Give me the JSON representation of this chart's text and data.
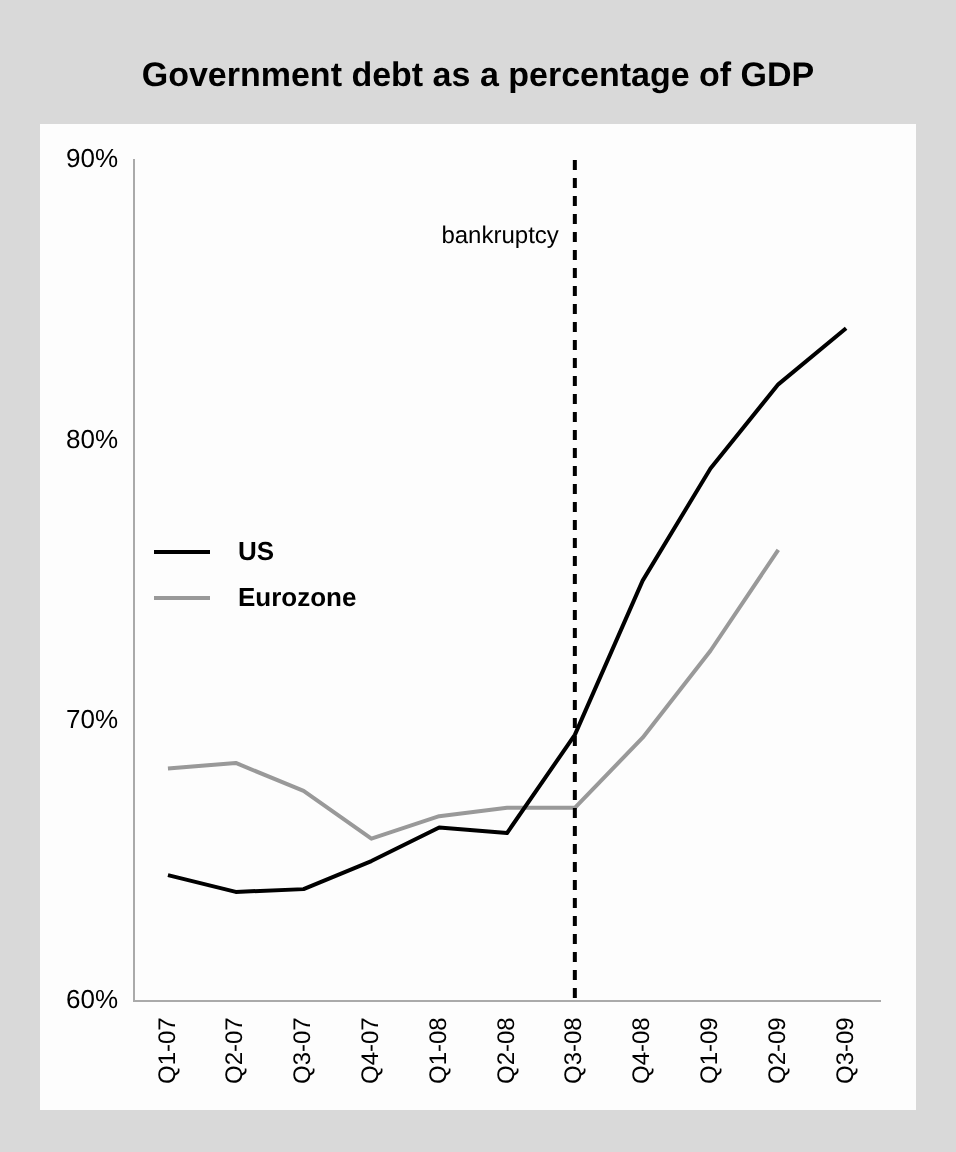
{
  "chart_data": {
    "type": "line",
    "title": "Government debt as a percentage of GDP",
    "categories": [
      "Q1-07",
      "Q2-07",
      "Q3-07",
      "Q4-07",
      "Q1-08",
      "Q2-08",
      "Q3-08",
      "Q4-08",
      "Q1-09",
      "Q2-09",
      "Q3-09"
    ],
    "series": [
      {
        "name": "US",
        "color": "#000000",
        "values": [
          64.5,
          63.9,
          64.0,
          65.0,
          66.2,
          66.0,
          69.5,
          75.0,
          79.0,
          82.0,
          84.0
        ]
      },
      {
        "name": "Eurozone",
        "color": "#999999",
        "values": [
          68.3,
          68.5,
          67.5,
          65.8,
          66.6,
          66.9,
          66.9,
          69.4,
          72.5,
          76.1,
          null
        ]
      }
    ],
    "ylim": [
      60,
      90
    ],
    "yticks": [
      {
        "value": 60,
        "label": "60%"
      },
      {
        "value": 70,
        "label": "70%"
      },
      {
        "value": 80,
        "label": "80%"
      },
      {
        "value": 90,
        "label": "90%"
      }
    ],
    "grid": false,
    "legend": "left",
    "marker": "none",
    "line_style": "solid",
    "ref_lines": [
      {
        "axis": "x",
        "value": "Q3-08",
        "label": "bankruptcy",
        "line_style": "dashed",
        "color": "#000000"
      }
    ]
  }
}
